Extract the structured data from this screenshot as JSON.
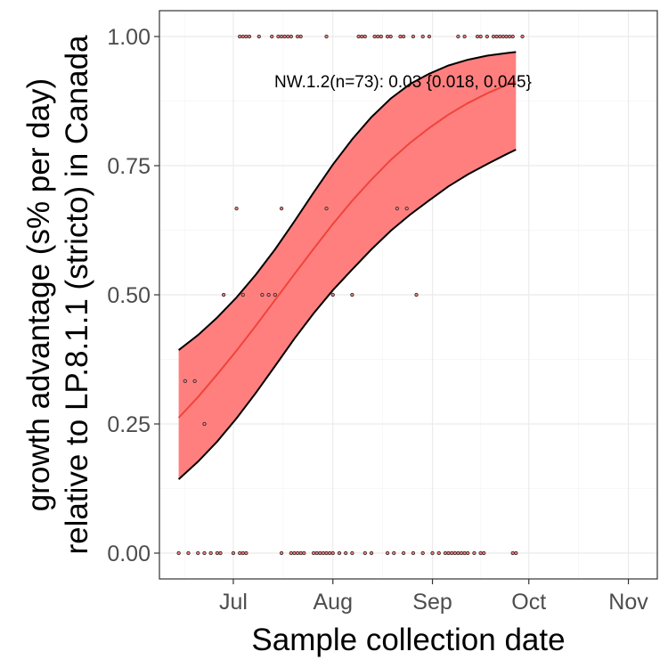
{
  "chart_data": {
    "type": "line",
    "title": "",
    "xlabel": "Sample collection date",
    "ylabel_line1": "growth advantage (s% per day)",
    "ylabel_line2": "relative to LP.8.1.1 (stricto) in Canada",
    "x_ticks": [
      {
        "date": "2025-07-01",
        "label": "Jul"
      },
      {
        "date": "2025-08-01",
        "label": "Aug"
      },
      {
        "date": "2025-09-01",
        "label": "Sep"
      },
      {
        "date": "2025-10-01",
        "label": "Oct"
      },
      {
        "date": "2025-11-01",
        "label": "Nov"
      }
    ],
    "xlim": [
      "2025-06-08",
      "2025-11-10"
    ],
    "y_ticks": [
      0,
      0.25,
      0.5,
      0.75,
      1.0
    ],
    "y_tick_labels": [
      "0.00",
      "0.25",
      "0.50",
      "0.75",
      "1.00"
    ],
    "ylim": [
      -0.05,
      1.05
    ],
    "grid": true,
    "annotation": "NW.1.2(n=73): 0.03 {0.018, 0.045}",
    "fit": {
      "x": [
        "2025-06-14",
        "2025-06-20",
        "2025-06-26",
        "2025-07-02",
        "2025-07-08",
        "2025-07-14",
        "2025-07-20",
        "2025-07-26",
        "2025-08-01",
        "2025-08-07",
        "2025-08-13",
        "2025-08-19",
        "2025-08-25",
        "2025-08-31",
        "2025-09-06",
        "2025-09-12",
        "2025-09-18",
        "2025-09-24",
        "2025-09-27"
      ],
      "mean": [
        0.262,
        0.302,
        0.346,
        0.392,
        0.44,
        0.49,
        0.54,
        0.589,
        0.637,
        0.682,
        0.723,
        0.761,
        0.794,
        0.823,
        0.849,
        0.871,
        0.89,
        0.906,
        0.913
      ],
      "lower": [
        0.143,
        0.177,
        0.216,
        0.261,
        0.31,
        0.362,
        0.415,
        0.464,
        0.509,
        0.549,
        0.588,
        0.624,
        0.655,
        0.683,
        0.71,
        0.733,
        0.753,
        0.772,
        0.781
      ],
      "upper": [
        0.393,
        0.422,
        0.456,
        0.495,
        0.539,
        0.588,
        0.642,
        0.698,
        0.752,
        0.801,
        0.844,
        0.88,
        0.908,
        0.928,
        0.944,
        0.955,
        0.963,
        0.968,
        0.97
      ]
    },
    "points": [
      {
        "x": "2025-06-14",
        "y": 0
      },
      {
        "x": "2025-06-17",
        "y": 0
      },
      {
        "x": "2025-06-20",
        "y": 0
      },
      {
        "x": "2025-06-22",
        "y": 0
      },
      {
        "x": "2025-06-24",
        "y": 0
      },
      {
        "x": "2025-06-26",
        "y": 0
      },
      {
        "x": "2025-06-27",
        "y": 0
      },
      {
        "x": "2025-07-01",
        "y": 0
      },
      {
        "x": "2025-07-03",
        "y": 0
      },
      {
        "x": "2025-07-04",
        "y": 0
      },
      {
        "x": "2025-07-05",
        "y": 0
      },
      {
        "x": "2025-07-16",
        "y": 0
      },
      {
        "x": "2025-07-19",
        "y": 0
      },
      {
        "x": "2025-07-20",
        "y": 0
      },
      {
        "x": "2025-07-21",
        "y": 0
      },
      {
        "x": "2025-07-22",
        "y": 0
      },
      {
        "x": "2025-07-23",
        "y": 0
      },
      {
        "x": "2025-07-26",
        "y": 0
      },
      {
        "x": "2025-07-27",
        "y": 0
      },
      {
        "x": "2025-07-28",
        "y": 0
      },
      {
        "x": "2025-07-29",
        "y": 0
      },
      {
        "x": "2025-07-30",
        "y": 0
      },
      {
        "x": "2025-07-31",
        "y": 0
      },
      {
        "x": "2025-08-01",
        "y": 0
      },
      {
        "x": "2025-08-03",
        "y": 0
      },
      {
        "x": "2025-08-05",
        "y": 0
      },
      {
        "x": "2025-08-07",
        "y": 0
      },
      {
        "x": "2025-08-11",
        "y": 0
      },
      {
        "x": "2025-08-13",
        "y": 0
      },
      {
        "x": "2025-08-18",
        "y": 0
      },
      {
        "x": "2025-08-20",
        "y": 0
      },
      {
        "x": "2025-08-23",
        "y": 0
      },
      {
        "x": "2025-08-26",
        "y": 0
      },
      {
        "x": "2025-08-29",
        "y": 0
      },
      {
        "x": "2025-09-01",
        "y": 0
      },
      {
        "x": "2025-09-03",
        "y": 0
      },
      {
        "x": "2025-09-05",
        "y": 0
      },
      {
        "x": "2025-09-06",
        "y": 0
      },
      {
        "x": "2025-09-07",
        "y": 0
      },
      {
        "x": "2025-09-08",
        "y": 0
      },
      {
        "x": "2025-09-09",
        "y": 0
      },
      {
        "x": "2025-09-10",
        "y": 0
      },
      {
        "x": "2025-09-11",
        "y": 0
      },
      {
        "x": "2025-09-12",
        "y": 0
      },
      {
        "x": "2025-09-14",
        "y": 0
      },
      {
        "x": "2025-09-16",
        "y": 0
      },
      {
        "x": "2025-09-17",
        "y": 0
      },
      {
        "x": "2025-09-26",
        "y": 0
      },
      {
        "x": "2025-09-27",
        "y": 0
      },
      {
        "x": "2025-06-16",
        "y": 0.333
      },
      {
        "x": "2025-06-19",
        "y": 0.333
      },
      {
        "x": "2025-06-22",
        "y": 0.25
      },
      {
        "x": "2025-06-28",
        "y": 0.5
      },
      {
        "x": "2025-07-04",
        "y": 0.5
      },
      {
        "x": "2025-07-10",
        "y": 0.5
      },
      {
        "x": "2025-07-12",
        "y": 0.5
      },
      {
        "x": "2025-07-14",
        "y": 0.5
      },
      {
        "x": "2025-08-01",
        "y": 0.5
      },
      {
        "x": "2025-08-07",
        "y": 0.5
      },
      {
        "x": "2025-08-27",
        "y": 0.5
      },
      {
        "x": "2025-07-02",
        "y": 0.667
      },
      {
        "x": "2025-07-16",
        "y": 0.667
      },
      {
        "x": "2025-07-30",
        "y": 0.667
      },
      {
        "x": "2025-08-21",
        "y": 0.667
      },
      {
        "x": "2025-08-24",
        "y": 0.667
      },
      {
        "x": "2025-07-03",
        "y": 1
      },
      {
        "x": "2025-07-04",
        "y": 1
      },
      {
        "x": "2025-07-05",
        "y": 1
      },
      {
        "x": "2025-07-06",
        "y": 1
      },
      {
        "x": "2025-07-09",
        "y": 1
      },
      {
        "x": "2025-07-13",
        "y": 1
      },
      {
        "x": "2025-07-15",
        "y": 1
      },
      {
        "x": "2025-07-16",
        "y": 1
      },
      {
        "x": "2025-07-17",
        "y": 1
      },
      {
        "x": "2025-07-18",
        "y": 1
      },
      {
        "x": "2025-07-19",
        "y": 1
      },
      {
        "x": "2025-07-21",
        "y": 1
      },
      {
        "x": "2025-07-22",
        "y": 1
      },
      {
        "x": "2025-07-30",
        "y": 1
      },
      {
        "x": "2025-08-09",
        "y": 1
      },
      {
        "x": "2025-08-10",
        "y": 1
      },
      {
        "x": "2025-08-11",
        "y": 1
      },
      {
        "x": "2025-08-14",
        "y": 1
      },
      {
        "x": "2025-08-15",
        "y": 1
      },
      {
        "x": "2025-08-16",
        "y": 1
      },
      {
        "x": "2025-08-18",
        "y": 1
      },
      {
        "x": "2025-08-19",
        "y": 1
      },
      {
        "x": "2025-08-22",
        "y": 1
      },
      {
        "x": "2025-08-23",
        "y": 1
      },
      {
        "x": "2025-08-26",
        "y": 1
      },
      {
        "x": "2025-08-29",
        "y": 1
      },
      {
        "x": "2025-08-31",
        "y": 1
      },
      {
        "x": "2025-09-09",
        "y": 1
      },
      {
        "x": "2025-09-11",
        "y": 1
      },
      {
        "x": "2025-09-15",
        "y": 1
      },
      {
        "x": "2025-09-16",
        "y": 1
      },
      {
        "x": "2025-09-18",
        "y": 1
      },
      {
        "x": "2025-09-20",
        "y": 1
      },
      {
        "x": "2025-09-21",
        "y": 1
      },
      {
        "x": "2025-09-22",
        "y": 1
      },
      {
        "x": "2025-09-23",
        "y": 1
      },
      {
        "x": "2025-09-24",
        "y": 1
      },
      {
        "x": "2025-09-25",
        "y": 1
      },
      {
        "x": "2025-09-26",
        "y": 1
      },
      {
        "x": "2025-09-29",
        "y": 1
      }
    ],
    "colors": {
      "ribbon": "#ff7f7f",
      "fit_line": "#f0443a",
      "bound_line": "#000000",
      "point_fill": "#ff7f7f",
      "point_stroke": "#3a2a2a",
      "grid_major": "#ebebeb",
      "grid_minor": "#f4f4f4",
      "panel_border": "#333333",
      "tick_text": "#4d4d4d"
    }
  }
}
